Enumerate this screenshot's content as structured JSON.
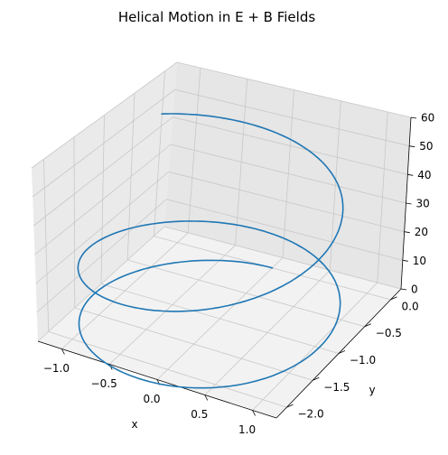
{
  "chart_data": {
    "type": "line",
    "projection": "3d",
    "title": "Helical Motion in E + B Fields",
    "xlabel": "x",
    "ylabel": "y",
    "zlabel": "",
    "xlim": [
      -1.25,
      1.25
    ],
    "ylim": [
      -2.2,
      0.2
    ],
    "zlim": [
      0,
      60
    ],
    "xticks": [
      -1.0,
      -0.5,
      0.0,
      0.5,
      1.0
    ],
    "yticks": [
      0.0,
      -0.5,
      -1.0,
      -1.5,
      -2.0
    ],
    "zticks": [
      0,
      10,
      20,
      30,
      40,
      50,
      60
    ],
    "xtick_labels": [
      "−1.0",
      "−0.5",
      "0.0",
      "0.5",
      "1.0"
    ],
    "ytick_labels": [
      "0.0",
      "−0.5",
      "−1.0",
      "−1.5",
      "−2.0"
    ],
    "ztick_labels": [
      "0",
      "10",
      "20",
      "30",
      "40",
      "50",
      "60"
    ],
    "grid": true,
    "series": [
      {
        "color": "#1f77b4",
        "param": {
          "t_end": 13.5,
          "x": "-1.2*sin(t)",
          "y": "-1.2*(1-cos(t))",
          "z": "0.3*t^2"
        }
      }
    ]
  }
}
